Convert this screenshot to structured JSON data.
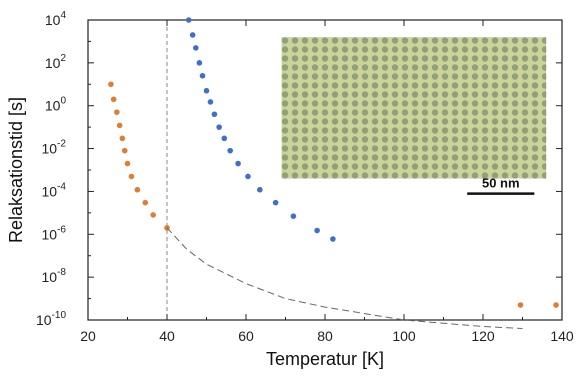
{
  "chart_data": {
    "type": "scatter",
    "xlabel": "Temperatur  [K]",
    "ylabel": "Relaksationstid [s]",
    "xlim": [
      20,
      140
    ],
    "ylim_log10": [
      -10,
      4
    ],
    "y_scale": "log",
    "x_ticks": [
      "20",
      "40",
      "60",
      "80",
      "100",
      "120",
      "140"
    ],
    "y_ticks": [
      {
        "base": "10",
        "exp": "4"
      },
      {
        "base": "10",
        "exp": "2"
      },
      {
        "base": "10",
        "exp": "0"
      },
      {
        "base": "10",
        "exp": "-2"
      },
      {
        "base": "10",
        "exp": "-4"
      },
      {
        "base": "10",
        "exp": "-6"
      },
      {
        "base": "10",
        "exp": "-8"
      },
      {
        "base": "10",
        "exp": "-10"
      }
    ],
    "reference_line_x": 40,
    "series": [
      {
        "color": "#e07d32",
        "points": [
          [
            25.8,
            10
          ],
          [
            26.5,
            2
          ],
          [
            27.3,
            0.5
          ],
          [
            28.0,
            0.12
          ],
          [
            28.7,
            0.03
          ],
          [
            29.3,
            0.008
          ],
          [
            30.0,
            0.002
          ],
          [
            31.0,
            0.0005
          ],
          [
            32.5,
            0.00012
          ],
          [
            34.5,
            3e-05
          ],
          [
            36.5,
            8e-06
          ],
          [
            40.0,
            2e-06
          ],
          [
            129.5,
            5e-10
          ],
          [
            138.5,
            5e-10
          ]
        ]
      },
      {
        "color": "#3f6fcb",
        "points": [
          [
            45.5,
            10000
          ],
          [
            46.5,
            2000
          ],
          [
            47.3,
            500
          ],
          [
            48.2,
            100
          ],
          [
            49.0,
            25
          ],
          [
            50.0,
            5
          ],
          [
            51.0,
            1.5
          ],
          [
            52.0,
            0.4
          ],
          [
            53.2,
            0.1
          ],
          [
            54.5,
            0.03
          ],
          [
            56.0,
            0.008
          ],
          [
            58.0,
            0.002
          ],
          [
            60.5,
            0.0005
          ],
          [
            63.5,
            0.00012
          ],
          [
            67.5,
            3e-05
          ],
          [
            72.0,
            7e-06
          ],
          [
            78.0,
            1.5e-06
          ],
          [
            82.0,
            6e-07
          ]
        ]
      },
      {
        "color": "#666666",
        "style": "dashed",
        "points": [
          [
            40,
            2e-06
          ],
          [
            45,
            2e-07
          ],
          [
            50,
            4e-08
          ],
          [
            60,
            5e-09
          ],
          [
            70,
            1e-09
          ],
          [
            80,
            4e-10
          ],
          [
            100,
            1e-10
          ],
          [
            120,
            5e-11
          ],
          [
            130,
            4e-11
          ]
        ]
      }
    ],
    "inset": {
      "scale_label": "50 nm",
      "base_color": "#c9d39a",
      "dot_color": "#7f8f6e"
    }
  }
}
